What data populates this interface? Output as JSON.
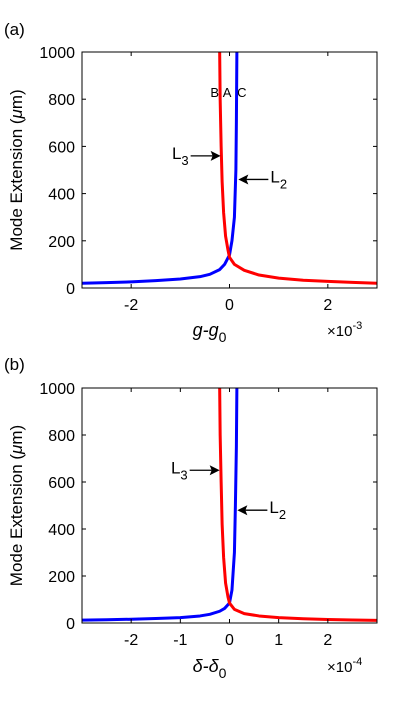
{
  "chart_data": [
    {
      "type": "line",
      "panel_label": "(a)",
      "xlabel_base": "g",
      "xlabel_sub": "0",
      "xlabel_mid": "-g",
      "ylabel": "Mode Extension (",
      "ylabel_mu": "μ",
      "ylabel_end": "m)",
      "xlim": [
        -3,
        3
      ],
      "ylim": [
        0,
        1000
      ],
      "x_ticks": [
        -2,
        0,
        2
      ],
      "x_tick_labels": [
        "-2",
        "0",
        "2"
      ],
      "y_ticks": [
        0,
        200,
        400,
        600,
        800,
        1000
      ],
      "y_tick_labels": [
        "0",
        "200",
        "400",
        "600",
        "800",
        "1000"
      ],
      "x_multiplier_prefix": "×10",
      "x_multiplier_exp": "-3",
      "region_labels": [
        {
          "text": "B",
          "x": -0.3,
          "y": 830
        },
        {
          "text": "A",
          "x": -0.05,
          "y": 830
        },
        {
          "text": "C",
          "x": 0.25,
          "y": 830
        }
      ],
      "annotations": [
        {
          "text_base": "L",
          "text_sub": "3",
          "side": "left",
          "tip_x": -0.18,
          "tip_y": 560
        },
        {
          "text_base": "L",
          "text_sub": "2",
          "side": "right",
          "tip_x": 0.18,
          "tip_y": 460
        }
      ],
      "series": [
        {
          "color": "#0000ff",
          "points": [
            [
              -3.0,
              20
            ],
            [
              -2.5,
              23
            ],
            [
              -2.0,
              26
            ],
            [
              -1.5,
              31
            ],
            [
              -1.0,
              38
            ],
            [
              -0.6,
              48
            ],
            [
              -0.4,
              58
            ],
            [
              -0.2,
              78
            ],
            [
              -0.1,
              100
            ],
            [
              0.0,
              140
            ],
            [
              0.05,
              200
            ],
            [
              0.1,
              300
            ],
            [
              0.13,
              500
            ],
            [
              0.14,
              700
            ],
            [
              0.15,
              1000
            ]
          ]
        },
        {
          "color": "#ff0000",
          "points": [
            [
              -0.2,
              1000
            ],
            [
              -0.19,
              800
            ],
            [
              -0.17,
              600
            ],
            [
              -0.15,
              450
            ],
            [
              -0.12,
              320
            ],
            [
              -0.08,
              220
            ],
            [
              -0.03,
              160
            ],
            [
              0.0,
              130
            ],
            [
              0.1,
              100
            ],
            [
              0.3,
              75
            ],
            [
              0.6,
              55
            ],
            [
              1.0,
              42
            ],
            [
              1.5,
              33
            ],
            [
              2.0,
              28
            ],
            [
              2.5,
              24
            ],
            [
              3.0,
              20
            ]
          ]
        }
      ]
    },
    {
      "type": "line",
      "panel_label": "(b)",
      "xlabel_base": "δ",
      "xlabel_sub": "0",
      "xlabel_mid": "-δ",
      "ylabel": "Mode Extension (",
      "ylabel_mu": "μ",
      "ylabel_end": "m)",
      "xlim": [
        -3,
        3
      ],
      "ylim": [
        0,
        1000
      ],
      "x_ticks": [
        -2,
        -1,
        0,
        1,
        2
      ],
      "x_tick_labels": [
        "-2",
        "-1",
        "0",
        "1",
        "2"
      ],
      "y_ticks": [
        0,
        200,
        400,
        600,
        800,
        1000
      ],
      "y_tick_labels": [
        "0",
        "200",
        "400",
        "600",
        "800",
        "1000"
      ],
      "x_multiplier_prefix": "×10",
      "x_multiplier_exp": "-4",
      "region_labels": [],
      "annotations": [
        {
          "text_base": "L",
          "text_sub": "3",
          "side": "left",
          "tip_x": -0.2,
          "tip_y": 650
        },
        {
          "text_base": "L",
          "text_sub": "2",
          "side": "right",
          "tip_x": 0.16,
          "tip_y": 480
        }
      ],
      "series": [
        {
          "color": "#0000ff",
          "points": [
            [
              -3.0,
              12
            ],
            [
              -2.5,
              14
            ],
            [
              -2.0,
              16
            ],
            [
              -1.5,
              19
            ],
            [
              -1.0,
              23
            ],
            [
              -0.6,
              30
            ],
            [
              -0.4,
              37
            ],
            [
              -0.2,
              50
            ],
            [
              -0.1,
              62
            ],
            [
              0.0,
              85
            ],
            [
              0.05,
              140
            ],
            [
              0.1,
              300
            ],
            [
              0.12,
              500
            ],
            [
              0.14,
              750
            ],
            [
              0.15,
              1000
            ]
          ]
        },
        {
          "color": "#ff0000",
          "points": [
            [
              -0.2,
              1000
            ],
            [
              -0.19,
              800
            ],
            [
              -0.17,
              600
            ],
            [
              -0.15,
              420
            ],
            [
              -0.12,
              280
            ],
            [
              -0.08,
              170
            ],
            [
              -0.03,
              110
            ],
            [
              0.0,
              85
            ],
            [
              0.1,
              58
            ],
            [
              0.3,
              40
            ],
            [
              0.6,
              30
            ],
            [
              1.0,
              23
            ],
            [
              1.5,
              18
            ],
            [
              2.0,
              15
            ],
            [
              2.5,
              13
            ],
            [
              3.0,
              11
            ]
          ]
        }
      ]
    }
  ]
}
